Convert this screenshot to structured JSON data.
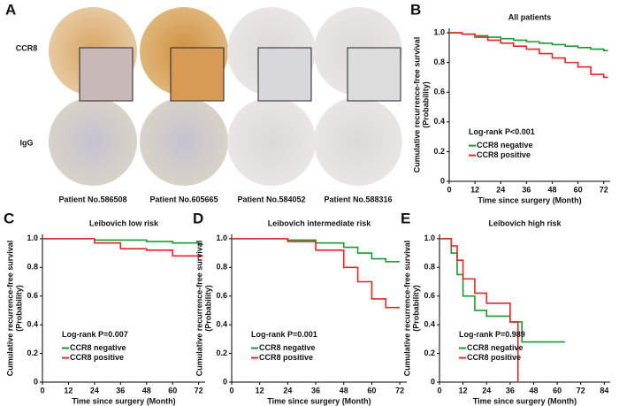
{
  "panel_a": {
    "label": "A",
    "row_labels": [
      "CCR8",
      "IgG"
    ],
    "patients": [
      "Patient No.586508",
      "Patient No.605665",
      "Patient No.584052",
      "Patient No.588316"
    ]
  },
  "chart_data": [
    {
      "type": "step",
      "panel_label": "B",
      "title": "All patients",
      "xlabel": "Time since surgery (Month)",
      "ylabel": [
        "Cumulative recurrence-free survival",
        "(Probability)"
      ],
      "annotation": "Log-rank P<0.001",
      "legend": "lower left",
      "x": [
        0,
        6,
        12,
        18,
        24,
        30,
        36,
        42,
        48,
        54,
        60,
        66,
        72,
        74
      ],
      "series": [
        {
          "name": "CCR8 negative",
          "color": "#1a9a33",
          "values": [
            1,
            0.99,
            0.98,
            0.97,
            0.96,
            0.95,
            0.94,
            0.93,
            0.92,
            0.91,
            0.9,
            0.89,
            0.88,
            0.88
          ]
        },
        {
          "name": "CCR8 positive",
          "color": "#e8262a",
          "values": [
            1,
            0.99,
            0.97,
            0.95,
            0.93,
            0.91,
            0.89,
            0.86,
            0.83,
            0.8,
            0.77,
            0.72,
            0.7,
            0.7
          ]
        }
      ],
      "xlim": [
        0,
        75
      ],
      "xticks": [
        0,
        12,
        24,
        36,
        48,
        60,
        72
      ],
      "ylim": [
        0,
        1.03
      ],
      "yticks": [
        0,
        0.2,
        0.4,
        0.6,
        0.8,
        {
          "value": 1,
          "label": "1.0"
        }
      ]
    },
    {
      "type": "step",
      "panel_label": "C",
      "title": "Leibovich low risk",
      "xlabel": "Time since surgery (Month)",
      "ylabel": [
        "Cumulative recurrence-free survival",
        "(Probability)"
      ],
      "annotation": "Log-rank P=0.007",
      "legend": "lower left",
      "x": [
        0,
        12,
        24,
        36,
        48,
        60,
        72,
        74
      ],
      "series": [
        {
          "name": "CCR8 negative",
          "color": "#1a9a33",
          "values": [
            1,
            1,
            0.99,
            0.99,
            0.98,
            0.97,
            0.96,
            0.96
          ]
        },
        {
          "name": "CCR8 positive",
          "color": "#e8262a",
          "values": [
            1,
            1,
            0.97,
            0.93,
            0.92,
            0.88,
            0.88,
            0.88
          ]
        }
      ],
      "xlim": [
        0,
        75
      ],
      "xticks": [
        0,
        12,
        24,
        36,
        48,
        60,
        72
      ],
      "ylim": [
        0,
        1.03
      ],
      "yticks": [
        0,
        0.2,
        0.4,
        0.6,
        0.8,
        {
          "value": 1,
          "label": "1.0"
        }
      ]
    },
    {
      "type": "step",
      "panel_label": "D",
      "title": "Leibovich intermediate risk",
      "xlabel": "Time since surgery (Month)",
      "ylabel": [
        "Cumulative recurrence-free survival",
        "(Probability)"
      ],
      "annotation": "Log-rank P=0.001",
      "legend": "lower left",
      "x": [
        0,
        12,
        24,
        36,
        48,
        54,
        60,
        66,
        72
      ],
      "series": [
        {
          "name": "CCR8 negative",
          "color": "#1a9a33",
          "values": [
            1,
            1,
            0.99,
            0.97,
            0.94,
            0.9,
            0.86,
            0.84,
            0.84
          ]
        },
        {
          "name": "CCR8 positive",
          "color": "#e8262a",
          "values": [
            1,
            1,
            0.98,
            0.92,
            0.8,
            0.7,
            0.58,
            0.52,
            0.52
          ]
        }
      ],
      "xlim": [
        0,
        75
      ],
      "xticks": [
        0,
        12,
        24,
        36,
        48,
        60,
        72
      ],
      "ylim": [
        0,
        1.03
      ],
      "yticks": [
        0,
        0.2,
        0.4,
        0.6,
        0.8,
        {
          "value": 1,
          "label": "1.0"
        }
      ]
    },
    {
      "type": "step",
      "panel_label": "E",
      "title": "Leibovich high risk",
      "xlabel": "Time since surgery (Month)",
      "ylabel": [
        "Cumulative recurrence-free survival",
        "(Probability)"
      ],
      "annotation": "Log-rank P=0.989",
      "legend": "lower left",
      "x": [
        0,
        6,
        9,
        12,
        18,
        24,
        36,
        40,
        42,
        60,
        64
      ],
      "series": [
        {
          "name": "CCR8 negative",
          "color": "#1a9a33",
          "values": [
            1,
            0.9,
            0.75,
            0.6,
            0.5,
            0.46,
            0.42,
            0.42,
            0.28,
            0.28,
            0.28
          ]
        },
        {
          "name": "CCR8 positive",
          "color": "#e8262a",
          "values": [
            1,
            0.95,
            0.85,
            0.72,
            0.62,
            0.55,
            0.42,
            0,
            null,
            null,
            null
          ]
        }
      ],
      "xlim": [
        0,
        87
      ],
      "xticks": [
        0,
        12,
        24,
        36,
        48,
        60,
        72,
        84
      ],
      "ylim": [
        0,
        1.03
      ],
      "yticks": [
        0,
        0.2,
        0.4,
        0.6,
        0.8,
        {
          "value": 1,
          "label": "1.0"
        }
      ]
    }
  ]
}
